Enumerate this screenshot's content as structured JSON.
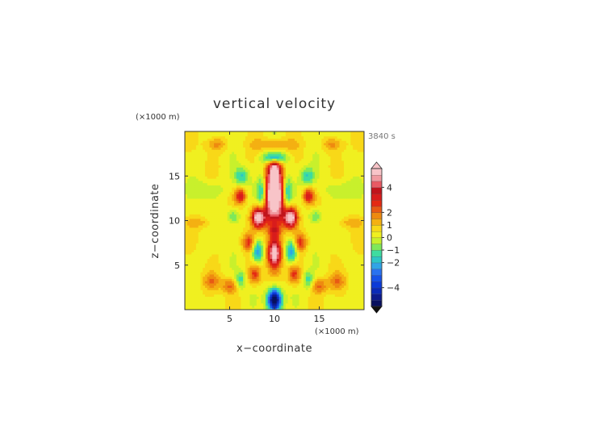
{
  "chart_data": {
    "type": "heatmap",
    "title": "vertical velocity",
    "xlabel": "x−coordinate",
    "ylabel": "z−coordinate",
    "x_unit": "(×1000 m)",
    "y_unit": "(×1000 m)",
    "time_label": "3840 s",
    "xlim": [
      0,
      20
    ],
    "ylim": [
      0,
      20
    ],
    "x_ticks": [
      "5",
      "10",
      "15"
    ],
    "y_ticks": [
      "5",
      "10",
      "15"
    ],
    "x_tick_values": [
      5,
      10,
      15
    ],
    "y_tick_values": [
      5,
      10,
      15
    ],
    "grid": false,
    "colorbar": {
      "vmin": -5.5,
      "vmax": 5.5,
      "levels": [
        -5.5,
        -5,
        -4.5,
        -4,
        -3.5,
        -3,
        -2.5,
        -2,
        -1.5,
        -1,
        -0.5,
        0,
        0.5,
        1,
        1.5,
        2,
        2.5,
        3,
        3.5,
        4,
        4.5,
        5,
        5.5
      ],
      "tick_labels": [
        "4",
        "2",
        "1",
        "0",
        "−1",
        "−2",
        "−4"
      ],
      "tick_values": [
        4,
        2,
        1,
        0,
        -1,
        -2,
        -4
      ],
      "colors": [
        "#08105e",
        "#0c1a8c",
        "#0a2ab8",
        "#0b3ad8",
        "#1752e8",
        "#2a72f0",
        "#30a4e6",
        "#2cc6c6",
        "#3edca0",
        "#7ee85a",
        "#c8f02c",
        "#f0f020",
        "#f8d818",
        "#f4b012",
        "#ee8a10",
        "#e85a14",
        "#e42a14",
        "#d81c1c",
        "#c0141c",
        "#e85a64",
        "#f09aa0",
        "#f8c4c8"
      ]
    },
    "features": [
      {
        "kind": "updraft core",
        "x": 10,
        "z": 13,
        "value": 5.5
      },
      {
        "kind": "updraft",
        "x": 8.2,
        "z": 10.4,
        "value": 5
      },
      {
        "kind": "updraft",
        "x": 11.8,
        "z": 10.4,
        "value": 5
      },
      {
        "kind": "updraft",
        "x": 10,
        "z": 6.4,
        "value": 5
      },
      {
        "kind": "updraft",
        "x": 10,
        "z": 15.8,
        "value": 3
      },
      {
        "kind": "downdraft",
        "x": 10,
        "z": 1.2,
        "value": -5
      },
      {
        "kind": "downdraft",
        "x": 10,
        "z": 17,
        "value": -3
      },
      {
        "kind": "downdraft",
        "x": 8,
        "z": 6.5,
        "value": -2.5
      },
      {
        "kind": "downdraft",
        "x": 12,
        "z": 6.5,
        "value": -2.5
      }
    ]
  }
}
